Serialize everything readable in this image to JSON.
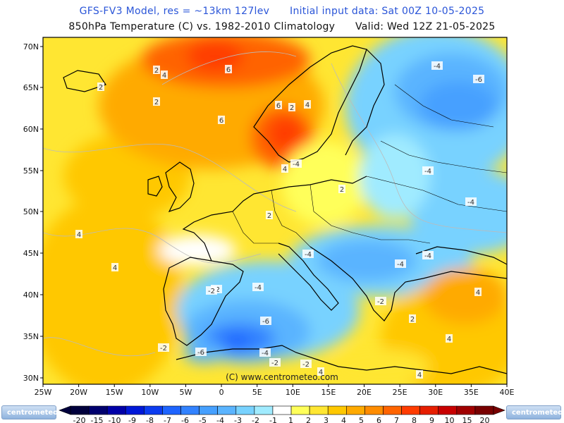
{
  "header": {
    "line1_model": "GFS-FV3 Model, res = ~13km 127lev",
    "line1_init": "Initial input data: Sat 00Z 10-05-2025",
    "line2_field": "850hPa Temperature (C) vs. 1982-2010 Climatology",
    "line2_valid": "Valid: Wed 12Z 21-05-2025"
  },
  "map": {
    "lat_labels": [
      "70N",
      "65N",
      "60N",
      "55N",
      "50N",
      "45N",
      "40N",
      "35N",
      "30N"
    ],
    "lon_labels": [
      "25W",
      "20W",
      "15W",
      "10W",
      "5W",
      "0",
      "5E",
      "10E",
      "15E",
      "20E",
      "25E",
      "30E",
      "35E",
      "40E"
    ],
    "watermark": "(C) www.centrometeo.com",
    "contour_labels": [
      "6",
      "4",
      "2",
      "2",
      "6",
      "6",
      "4",
      "4",
      "2",
      "2",
      "-2",
      "-4",
      "-6",
      "-6",
      "-4",
      "-4",
      "-4",
      "-4",
      "4",
      "4",
      "-2",
      "-4",
      "-6",
      "-4",
      "-2",
      "-4",
      "-2",
      "-2",
      "-4",
      "2",
      "4",
      "2",
      "4",
      "4",
      "4",
      "-2",
      "2"
    ]
  },
  "colorbar": {
    "ticks": [
      "-20",
      "-15",
      "-10",
      "-9",
      "-8",
      "-7",
      "-6",
      "-5",
      "-4",
      "-3",
      "-2",
      "-1",
      "1",
      "2",
      "3",
      "4",
      "5",
      "6",
      "7",
      "8",
      "9",
      "10",
      "15",
      "20"
    ],
    "colors": [
      "#00003c",
      "#00006e",
      "#0000a8",
      "#0018d8",
      "#0c3cf0",
      "#1e64ff",
      "#3282ff",
      "#46a0ff",
      "#5ab4ff",
      "#78d2ff",
      "#a0ebff",
      "#ffffff",
      "#ffff5a",
      "#ffe632",
      "#ffc800",
      "#ffaa00",
      "#ff8c00",
      "#ff6400",
      "#ff3c00",
      "#e61e00",
      "#c80000",
      "#a00000",
      "#780000"
    ]
  },
  "logos": {
    "left": "centrometeo",
    "right": "centrometeo"
  }
}
